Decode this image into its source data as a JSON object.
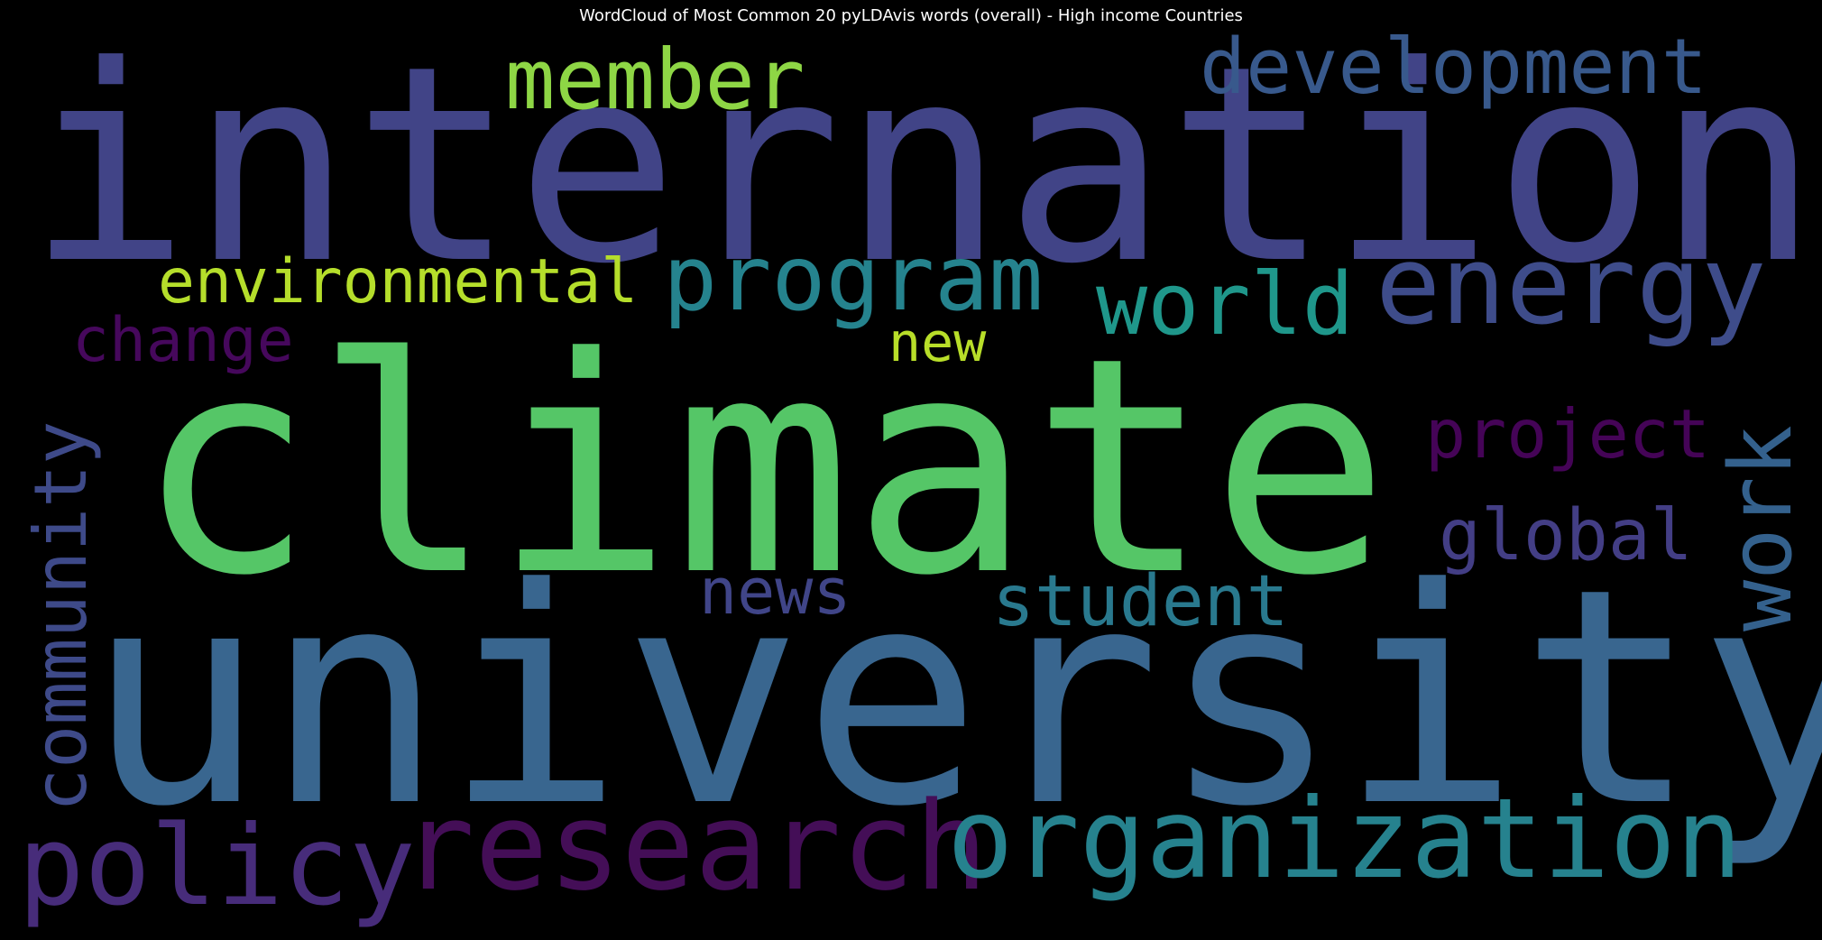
{
  "chart_data": {
    "type": "wordcloud",
    "title": "WordCloud of Most Common 20 pyLDAvis words (overall) - High income Countries",
    "background": "#000000",
    "colormap": "viridis",
    "words": [
      {
        "text": "climate",
        "color": "#55c667"
      },
      {
        "text": "university",
        "color": "#39668f"
      },
      {
        "text": "international",
        "color": "#414487"
      },
      {
        "text": "research",
        "color": "#440e57"
      },
      {
        "text": "organization",
        "color": "#26828e"
      },
      {
        "text": "policy",
        "color": "#472c7a"
      },
      {
        "text": "energy",
        "color": "#3e4c8a"
      },
      {
        "text": "program",
        "color": "#25838e"
      },
      {
        "text": "member",
        "color": "#8ed645"
      },
      {
        "text": "development",
        "color": "#38598c"
      },
      {
        "text": "world",
        "color": "#1f978b"
      },
      {
        "text": "environmental",
        "color": "#b5de2b"
      },
      {
        "text": "work",
        "color": "#34618d"
      },
      {
        "text": "community",
        "color": "#3e4a89"
      },
      {
        "text": "project",
        "color": "#450457"
      },
      {
        "text": "student",
        "color": "#29798e"
      },
      {
        "text": "global",
        "color": "#433e85"
      },
      {
        "text": "change",
        "color": "#46085c"
      },
      {
        "text": "news",
        "color": "#404588"
      },
      {
        "text": "new",
        "color": "#b8de29"
      }
    ]
  }
}
